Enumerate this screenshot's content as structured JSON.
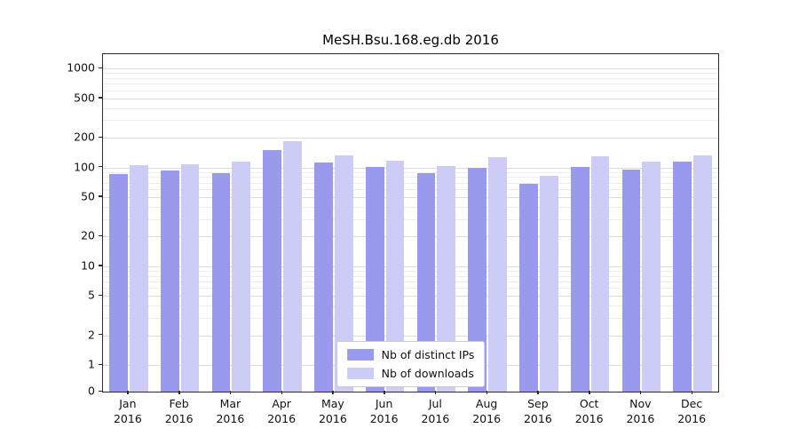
{
  "title": "MeSH.Bsu.168.eg.db 2016",
  "chart_data": {
    "type": "bar",
    "title": "MeSH.Bsu.168.eg.db 2016",
    "categories": [
      "Jan 2016",
      "Feb 2016",
      "Mar 2016",
      "Apr 2016",
      "May 2016",
      "Jun 2016",
      "Jul 2016",
      "Aug 2016",
      "Sep 2016",
      "Oct 2016",
      "Nov 2016",
      "Dec 2016"
    ],
    "series": [
      {
        "name": "Nb of distinct IPs",
        "color": "#9999ee",
        "values": [
          85,
          93,
          87,
          150,
          113,
          102,
          88,
          100,
          68,
          102,
          95,
          115
        ]
      },
      {
        "name": "Nb of downloads",
        "color": "#ccccf7",
        "values": [
          105,
          108,
          115,
          185,
          133,
          118,
          103,
          127,
          82,
          130,
          115,
          133
        ]
      }
    ],
    "y_scale": "symlog",
    "y_ticks": [
      0,
      1,
      2,
      5,
      10,
      20,
      50,
      100,
      200,
      500,
      1000
    ],
    "ylim": [
      0,
      1400
    ],
    "xlabel": "",
    "ylabel": "",
    "grid": "horizontal",
    "legend_position": "lower center"
  }
}
